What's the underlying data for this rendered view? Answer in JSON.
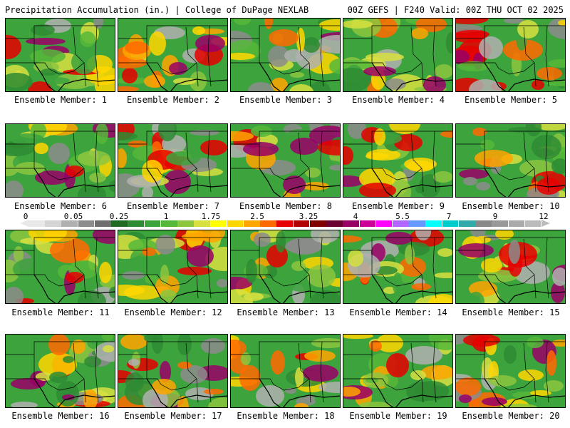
{
  "header": {
    "left": "Precipitation Accumulation (in.) | College of DuPage NEXLAB",
    "right": "00Z GEFS | F240 Valid: 00Z THU OCT 02 2025"
  },
  "colorbar": {
    "tick_labels": [
      "0",
      "0.05",
      "0.25",
      "1",
      "1.75",
      "2.5",
      "3.25",
      "4",
      "5.5",
      "7",
      "9",
      "12"
    ],
    "colors": [
      "#e8e8e8",
      "#d4d4d4",
      "#b0b0b0",
      "#8c8c8c",
      "#6e6e6e",
      "#1f6b24",
      "#2e8b32",
      "#3da33d",
      "#56b83a",
      "#8cc63f",
      "#d8e040",
      "#ffff00",
      "#ffd700",
      "#ffa500",
      "#ff6a00",
      "#e60000",
      "#b30000",
      "#800000",
      "#6b0030",
      "#990066",
      "#cc0099",
      "#ff00ff",
      "#b266ff",
      "#6699ff",
      "#00ffff",
      "#00cccc",
      "#33aaaa",
      "#888888",
      "#999999",
      "#aaaaaa",
      "#bbbbbb"
    ]
  },
  "members": [
    {
      "label": "Ensemble Member: 1"
    },
    {
      "label": "Ensemble Member: 2"
    },
    {
      "label": "Ensemble Member: 3"
    },
    {
      "label": "Ensemble Member: 4"
    },
    {
      "label": "Ensemble Member: 5"
    },
    {
      "label": "Ensemble Member: 6"
    },
    {
      "label": "Ensemble Member: 7"
    },
    {
      "label": "Ensemble Member: 8"
    },
    {
      "label": "Ensemble Member: 9"
    },
    {
      "label": "Ensemble Member: 10"
    },
    {
      "label": "Ensemble Member: 11"
    },
    {
      "label": "Ensemble Member: 12"
    },
    {
      "label": "Ensemble Member: 13"
    },
    {
      "label": "Ensemble Member: 14"
    },
    {
      "label": "Ensemble Member: 15"
    },
    {
      "label": "Ensemble Member: 16"
    },
    {
      "label": "Ensemble Member: 17"
    },
    {
      "label": "Ensemble Member: 18"
    },
    {
      "label": "Ensemble Member: 19"
    },
    {
      "label": "Ensemble Member: 20"
    }
  ]
}
